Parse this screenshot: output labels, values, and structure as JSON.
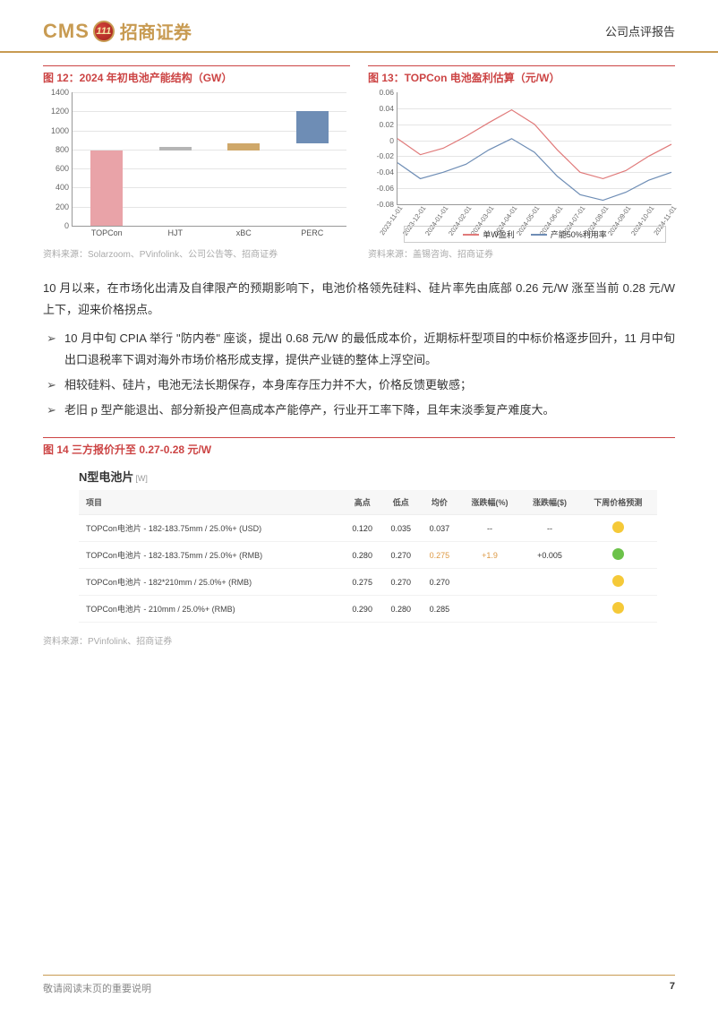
{
  "header": {
    "logo_en": "CMS",
    "logo_badge": "111",
    "logo_cn": "招商证券",
    "doc_type": "公司点评报告"
  },
  "fig12": {
    "title": "图 12：2024 年初电池产能结构（GW）",
    "type": "bar",
    "ylim": [
      0,
      1400
    ],
    "ytick_step": 200,
    "grid_color": "#e5e5e5",
    "axis_color": "#999999",
    "categories": [
      "TOPCon",
      "HJT",
      "xBC",
      "PERC"
    ],
    "bars": [
      {
        "bottom": 0,
        "top": 790,
        "color": "#e9a3a8"
      },
      {
        "bottom": 790,
        "top": 830,
        "color": "#b5b5b5"
      },
      {
        "bottom": 790,
        "top": 860,
        "color": "#cfa86a"
      },
      {
        "bottom": 860,
        "top": 1200,
        "color": "#6e8db5"
      }
    ],
    "source": "资料来源：Solarzoom、PVinfolink、公司公告等、招商证券"
  },
  "fig13": {
    "title": "图 13：TOPCon 电池盈利估算（元/W）",
    "type": "line",
    "ylim": [
      -0.08,
      0.06
    ],
    "ytick_step": 0.02,
    "grid_color": "#e5e5e5",
    "axis_color": "#999999",
    "x_labels": [
      "2023-11-01",
      "2023-12-01",
      "2024-01-01",
      "2024-02-01",
      "2024-03-01",
      "2024-04-01",
      "2024-05-01",
      "2024-06-01",
      "2024-07-01",
      "2024-08-01",
      "2024-09-01",
      "2024-10-01",
      "2024-11-01"
    ],
    "series": [
      {
        "name": "单W盈利",
        "color": "#e07a7a",
        "points": [
          0.002,
          -0.018,
          -0.01,
          0.005,
          0.022,
          0.038,
          0.02,
          -0.012,
          -0.04,
          -0.048,
          -0.038,
          -0.02,
          -0.005
        ]
      },
      {
        "name": "产能50%利用率",
        "color": "#6e8db5",
        "points": [
          -0.028,
          -0.048,
          -0.04,
          -0.03,
          -0.012,
          0.002,
          -0.015,
          -0.045,
          -0.068,
          -0.075,
          -0.065,
          -0.05,
          -0.04
        ]
      }
    ],
    "legend": {
      "items": [
        "单W盈利",
        "产能50%利用率"
      ]
    },
    "source": "资料来源：盖锡咨询、招商证券"
  },
  "body": {
    "intro": "10 月以来，在市场化出清及自律限产的预期影响下，电池价格领先硅料、硅片率先由底部 0.26 元/W 涨至当前 0.28 元/W 上下，迎来价格拐点。",
    "bullets": [
      "10 月中旬 CPIA 举行 \"防内卷\" 座谈，提出 0.68 元/W 的最低成本价，近期标杆型项目的中标价格逐步回升，11 月中旬出口退税率下调对海外市场价格形成支撑，提供产业链的整体上浮空间。",
      "相较硅料、硅片，电池无法长期保存，本身库存压力并不大，价格反馈更敏感；",
      "老旧 p 型产能退出、部分新投产但高成本产能停产，行业开工率下降，且年末淡季复产难度大。"
    ]
  },
  "fig14": {
    "title": "图 14  三方报价升至 0.27-0.28 元/W",
    "table_heading": "N型电池片",
    "table_unit": "[W]",
    "columns": [
      "项目",
      "高点",
      "低点",
      "均价",
      "涨跌幅(%)",
      "涨跌幅($)",
      "下周价格预测"
    ],
    "rows": [
      {
        "cells": [
          "TOPCon电池片 - 182-183.75mm / 25.0%+ (USD)",
          "0.120",
          "0.035",
          "0.037",
          "--",
          "--"
        ],
        "face": "yellow"
      },
      {
        "cells": [
          "TOPCon电池片 - 182-183.75mm / 25.0%+ (RMB)",
          "0.280",
          "0.270",
          "0.275",
          "+1.9",
          "+0.005"
        ],
        "face": "green",
        "pos": [
          4,
          5
        ]
      },
      {
        "cells": [
          "TOPCon电池片 - 182*210mm / 25.0%+ (RMB)",
          "0.275",
          "0.270",
          "0.270",
          "",
          ""
        ],
        "face": "yellow"
      },
      {
        "cells": [
          "TOPCon电池片 - 210mm / 25.0%+ (RMB)",
          "0.290",
          "0.280",
          "0.285",
          "",
          ""
        ],
        "face": "yellow"
      }
    ],
    "source": "资料来源：PVinfolink、招商证券"
  },
  "footer": {
    "note": "敬请阅读末页的重要说明",
    "page": "7"
  }
}
